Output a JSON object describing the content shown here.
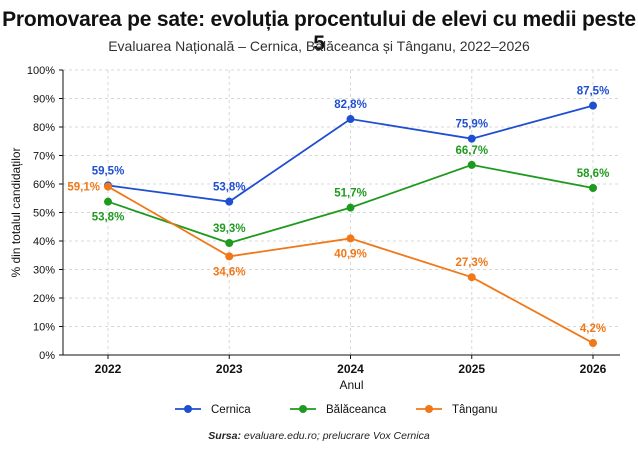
{
  "header": {
    "title": "Promovarea pe sate: evoluția procentului de elevi cu medii peste 5",
    "subtitle": "Evaluarea Națională – Cernica, Bălăceanca și Tânganu, 2022–2026"
  },
  "source": {
    "label": "Sursa:",
    "text": "evaluare.edu.ro; prelucrare Vox Cernica"
  },
  "chart_data": {
    "type": "line",
    "title": "Promovarea pe sate: evoluția procentului de elevi cu medii peste 5",
    "subtitle": "Evaluarea Națională – Cernica, Bălăceanca și Tânganu, 2022–2026",
    "xlabel": "Anul",
    "ylabel": "% din totalul candidaților",
    "categories": [
      "2022",
      "2023",
      "2024",
      "2025",
      "2026"
    ],
    "ylim": [
      0,
      100
    ],
    "yticks": [
      0,
      10,
      20,
      30,
      40,
      50,
      60,
      70,
      80,
      90,
      100
    ],
    "ytick_labels": [
      "0%",
      "10%",
      "20%",
      "30%",
      "40%",
      "50%",
      "60%",
      "70%",
      "80%",
      "90%",
      "100%"
    ],
    "grid": true,
    "legend_position": "bottom",
    "series": [
      {
        "name": "Cernica",
        "color": "#1f4fd1",
        "values": [
          59.5,
          53.8,
          82.8,
          75.9,
          87.5
        ],
        "labels": [
          "59,5%",
          "53,8%",
          "82,8%",
          "75,9%",
          "87,5%"
        ]
      },
      {
        "name": "Bălăceanca",
        "color": "#1e9a1e",
        "values": [
          53.8,
          39.3,
          51.7,
          66.7,
          58.6
        ],
        "labels": [
          "53,8%",
          "39,3%",
          "51,7%",
          "66,7%",
          "58,6%"
        ]
      },
      {
        "name": "Tânganu",
        "color": "#f07818",
        "values": [
          59.1,
          34.6,
          40.9,
          27.3,
          4.2
        ],
        "labels": [
          "59,1%",
          "34,6%",
          "40,9%",
          "27,3%",
          "4,2%"
        ]
      }
    ]
  }
}
